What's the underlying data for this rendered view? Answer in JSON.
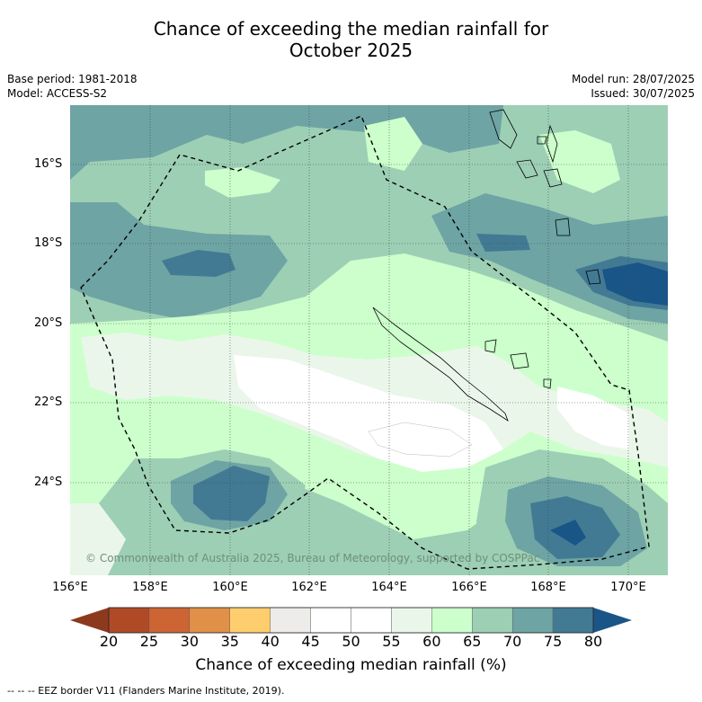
{
  "title": {
    "line1": "Chance of exceeding the median rainfall for",
    "line2": "October 2025"
  },
  "meta": {
    "base_period": "Base period: 1981-2018",
    "model": "Model: ACCESS-S2",
    "model_run": "Model run: 28/07/2025",
    "issued": "Issued: 30/07/2025"
  },
  "map": {
    "lat_labels": [
      "16°S",
      "18°S",
      "20°S",
      "22°S",
      "24°S"
    ],
    "lon_labels": [
      "156°E",
      "158°E",
      "160°E",
      "162°E",
      "164°E",
      "166°E",
      "168°E",
      "170°E"
    ],
    "copyright": "© Commonwealth of Australia 2025, Bureau of Meteorology, supported by COSPPac",
    "border_color": "#000000",
    "ocean_base_color": "#9dcfb5"
  },
  "colorbar": {
    "ticks": [
      "20",
      "25",
      "30",
      "35",
      "40",
      "45",
      "50",
      "55",
      "60",
      "65",
      "70",
      "75",
      "80"
    ],
    "colors": [
      "#b04a26",
      "#cc6533",
      "#e09048",
      "#fece6e",
      "#eeecea",
      "#ffffff",
      "#ffffff",
      "#ebf6ea",
      "#ccffcc",
      "#9dcfb5",
      "#6ea4a4",
      "#427a94"
    ],
    "under_color": "#8c3a1e",
    "over_color": "#1a5588",
    "label": "Chance of exceeding median rainfall (%)"
  },
  "footnote": "--  --  -- EEZ border V11 (Flanders Marine Institute, 2019)."
}
